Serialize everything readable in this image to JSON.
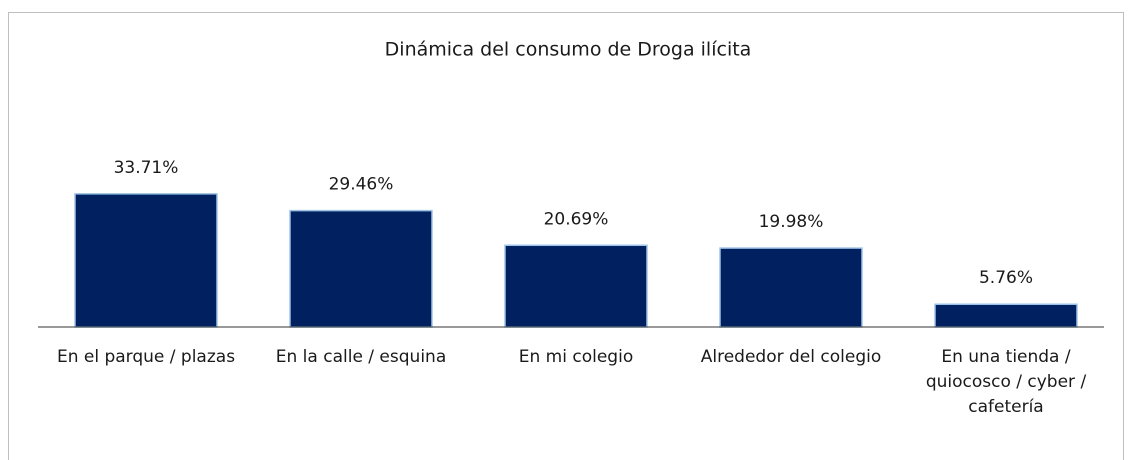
{
  "chart_data": {
    "type": "bar",
    "title": "Dinámica del consumo de Droga ilícita",
    "categories": [
      "En el parque / plazas",
      "En la calle / esquina",
      "En mi colegio",
      "Alrededor del colegio",
      "En una tienda / quiocosco / cyber / cafetería"
    ],
    "values": [
      33.71,
      29.46,
      20.69,
      19.98,
      5.76
    ],
    "value_labels": [
      "33.71%",
      "29.46%",
      "20.69%",
      "19.98%",
      "5.76%"
    ],
    "color": "#002060"
  }
}
